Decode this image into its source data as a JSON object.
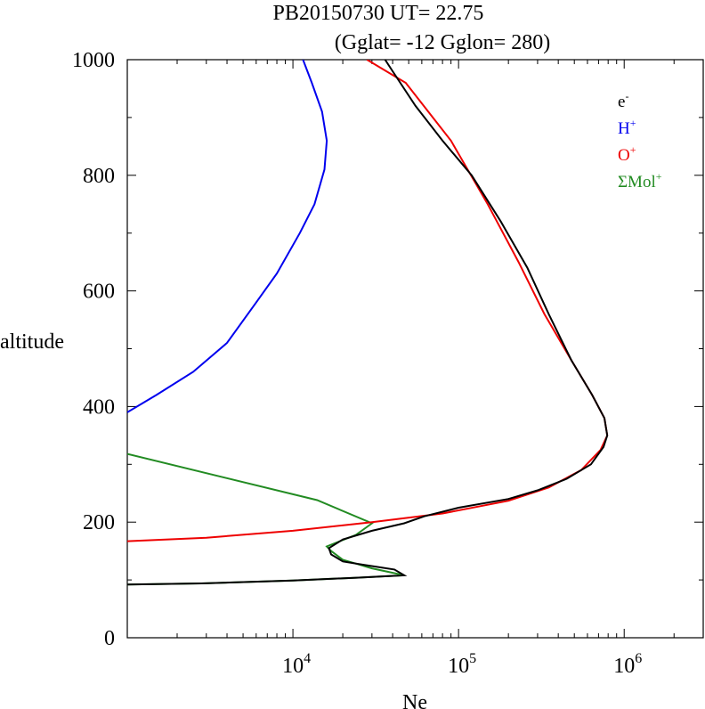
{
  "chart_data": {
    "type": "line",
    "title": "PB20150730   UT=  22.75",
    "subtitle": "(Gglat= -12   Gglon=  280)",
    "xlabel": "Ne",
    "ylabel": "altitude",
    "xscale": "log",
    "xlim": [
      1000,
      3000000
    ],
    "ylim": [
      0,
      1000
    ],
    "yticks": [
      "0",
      "200",
      "400",
      "600",
      "800",
      "1000"
    ],
    "xticks": [
      {
        "base": "10",
        "exp": "4",
        "value": 10000
      },
      {
        "base": "10",
        "exp": "5",
        "value": 100000
      },
      {
        "base": "10",
        "exp": "6",
        "value": 1000000
      }
    ],
    "legend_position": "top-right",
    "series": [
      {
        "name": "e",
        "sup": "-",
        "color": "#000000",
        "points": [
          [
            1000,
            92
          ],
          [
            2800,
            94
          ],
          [
            10000,
            99
          ],
          [
            25000,
            104
          ],
          [
            47000,
            108
          ],
          [
            41000,
            118
          ],
          [
            27000,
            126
          ],
          [
            20000,
            132
          ],
          [
            17000,
            144
          ],
          [
            16500,
            155
          ],
          [
            20000,
            170
          ],
          [
            30000,
            185
          ],
          [
            47000,
            198
          ],
          [
            62000,
            210
          ],
          [
            100000,
            225
          ],
          [
            200000,
            240
          ],
          [
            300000,
            255
          ],
          [
            450000,
            275
          ],
          [
            630000,
            300
          ],
          [
            750000,
            330
          ],
          [
            790000,
            350
          ],
          [
            760000,
            380
          ],
          [
            640000,
            420
          ],
          [
            480000,
            480
          ],
          [
            350000,
            560
          ],
          [
            260000,
            640
          ],
          [
            180000,
            720
          ],
          [
            120000,
            800
          ],
          [
            80000,
            860
          ],
          [
            55000,
            920
          ],
          [
            40000,
            980
          ],
          [
            36000,
            1000
          ]
        ]
      },
      {
        "name": "H",
        "sup": "+",
        "color": "#0000ee",
        "points": [
          [
            1000,
            390
          ],
          [
            1500,
            420
          ],
          [
            2500,
            460
          ],
          [
            4000,
            510
          ],
          [
            6000,
            580
          ],
          [
            8000,
            630
          ],
          [
            11000,
            700
          ],
          [
            13500,
            750
          ],
          [
            15500,
            810
          ],
          [
            16000,
            860
          ],
          [
            15000,
            910
          ],
          [
            13000,
            960
          ],
          [
            11500,
            1000
          ]
        ]
      },
      {
        "name": "O",
        "sup": "+",
        "color": "#ee0000",
        "points": [
          [
            1000,
            167
          ],
          [
            3000,
            173
          ],
          [
            10000,
            185
          ],
          [
            30000,
            200
          ],
          [
            80000,
            215
          ],
          [
            200000,
            237
          ],
          [
            350000,
            260
          ],
          [
            550000,
            290
          ],
          [
            720000,
            325
          ],
          [
            790000,
            350
          ],
          [
            760000,
            380
          ],
          [
            640000,
            420
          ],
          [
            480000,
            480
          ],
          [
            330000,
            560
          ],
          [
            230000,
            650
          ],
          [
            150000,
            750
          ],
          [
            90000,
            860
          ],
          [
            48000,
            960
          ],
          [
            28000,
            1000
          ]
        ]
      },
      {
        "name": "ΣMol",
        "sup": "+",
        "color": "#228b22",
        "points": [
          [
            1000,
            318
          ],
          [
            14000,
            238
          ],
          [
            30000,
            198
          ],
          [
            24000,
            178
          ],
          [
            16000,
            158
          ],
          [
            17000,
            150
          ],
          [
            20000,
            135
          ],
          [
            30000,
            120
          ],
          [
            47000,
            108
          ],
          [
            25000,
            104
          ],
          [
            10000,
            99
          ],
          [
            2800,
            94
          ],
          [
            1000,
            92
          ]
        ]
      }
    ]
  }
}
